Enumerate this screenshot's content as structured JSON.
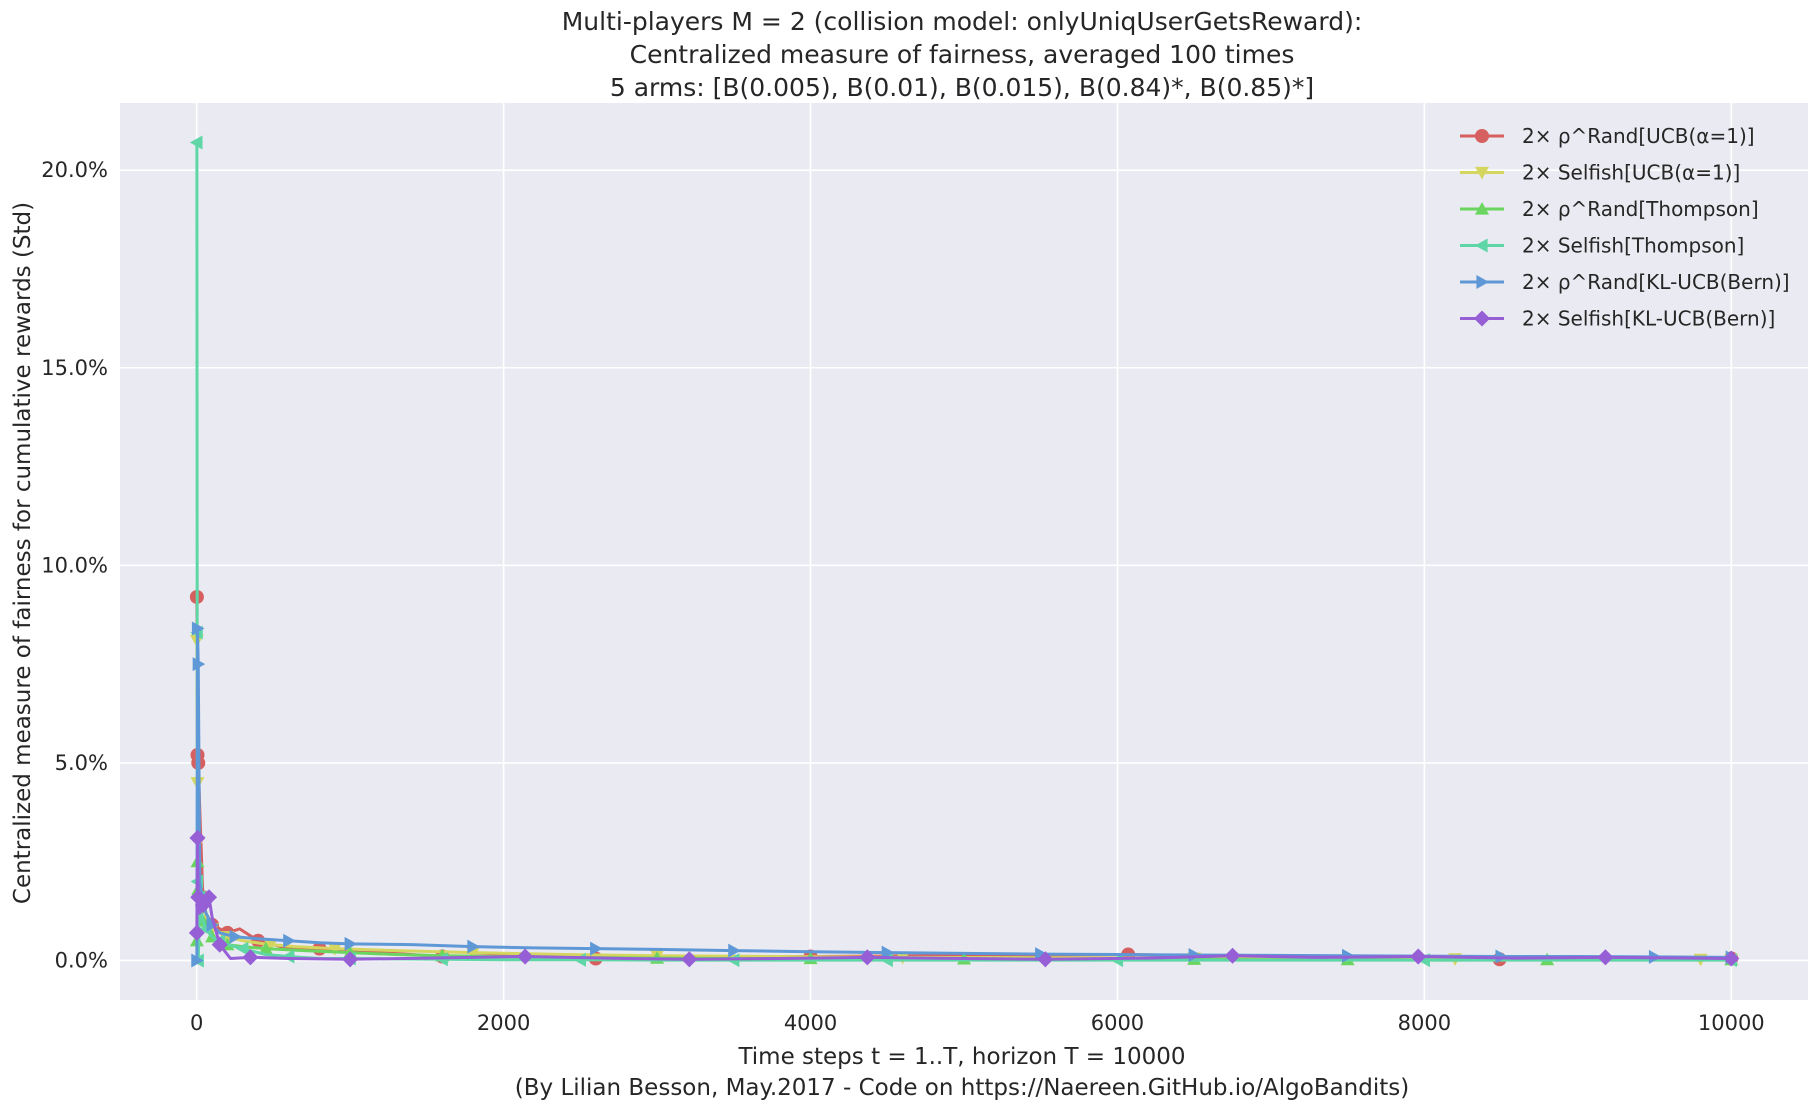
{
  "chart_data": {
    "type": "line",
    "title_lines": [
      "Multi-players M = 2 (collision model: onlyUniqUserGetsReward):",
      "Centralized measure of fairness, averaged 100 times",
      "5 arms: [B(0.005), B(0.01), B(0.015), B(0.84)*, B(0.85)*]"
    ],
    "xlabel": "Time steps t = 1..T, horizon T = 10000",
    "caption": "(By Lilian Besson, May.2017 - Code on https://Naereen.GitHub.io/AlgoBandits)",
    "ylabel": "Centralized measure of fairness for cumulative rewards (Std)",
    "xlim": [
      -500,
      10500
    ],
    "ylim": [
      -1.0,
      21.7
    ],
    "x_ticks": [
      0,
      2000,
      4000,
      6000,
      8000,
      10000
    ],
    "x_tick_labels": [
      "0",
      "2000",
      "4000",
      "6000",
      "8000",
      "10000"
    ],
    "y_ticks": [
      0,
      5,
      10,
      15,
      20
    ],
    "y_tick_labels": [
      "0.0%",
      "5.0%",
      "10.0%",
      "15.0%",
      "20.0%"
    ],
    "grid": true,
    "legend_position": "top-right",
    "background_color": "#eaeaf2",
    "series": [
      {
        "name": "2× ρ^Rand[UCB(α=1)]",
        "color": "#d65f5f",
        "marker": "circle",
        "x": [
          1,
          5,
          10,
          20,
          40,
          60,
          100,
          150,
          200,
          280,
          400,
          600,
          800,
          1200,
          1600,
          2000,
          2600,
          3200,
          4000,
          4860,
          6070,
          7280,
          8490,
          9700,
          10000
        ],
        "y": [
          9.2,
          5.2,
          5.0,
          3.8,
          1.6,
          1.2,
          0.9,
          0.8,
          0.7,
          0.8,
          0.5,
          0.3,
          0.3,
          0.2,
          0.1,
          0.12,
          0.05,
          0.1,
          0.1,
          0.12,
          0.15,
          0.08,
          0.03,
          0.08,
          0.05
        ]
      },
      {
        "name": "2× Selfish[UCB(α=1)]",
        "color": "#d5d65f",
        "marker": "triangle-down",
        "x": [
          1,
          5,
          10,
          20,
          40,
          60,
          100,
          150,
          200,
          300,
          480,
          640,
          900,
          1300,
          1800,
          2400,
          3000,
          3800,
          4600,
          5500,
          6500,
          7400,
          8200,
          9000,
          9800,
          10000
        ],
        "y": [
          8.1,
          4.5,
          3.0,
          2.0,
          1.5,
          1.1,
          0.8,
          0.7,
          0.6,
          0.5,
          0.4,
          0.35,
          0.3,
          0.25,
          0.2,
          0.15,
          0.12,
          0.1,
          0.08,
          0.07,
          0.06,
          0.05,
          0.04,
          0.04,
          0.03,
          0.03
        ]
      },
      {
        "name": "2× ρ^Rand[Thompson]",
        "color": "#6ad65f",
        "marker": "triangle-up",
        "x": [
          1,
          5,
          10,
          20,
          40,
          60,
          100,
          150,
          200,
          300,
          450,
          700,
          1000,
          1300,
          1600,
          2300,
          3000,
          3460,
          4000,
          4610,
          5000,
          5760,
          6500,
          6910,
          7500,
          8140,
          8800,
          9370,
          10000
        ],
        "y": [
          0.5,
          2.5,
          1.8,
          1.2,
          1.0,
          0.8,
          0.6,
          0.5,
          0.4,
          0.35,
          0.3,
          0.25,
          0.2,
          0.15,
          0.12,
          0.08,
          0.06,
          0.05,
          0.05,
          0.04,
          0.04,
          0.03,
          0.03,
          0.02,
          0.02,
          0.01,
          0.02,
          0.02,
          0.02
        ]
      },
      {
        "name": "2× Selfish[Thompson]",
        "color": "#5fd6a6",
        "marker": "triangle-left",
        "x": [
          1,
          3,
          5,
          10,
          20,
          40,
          60,
          100,
          150,
          200,
          300,
          450,
          600,
          800,
          1000,
          1300,
          1600,
          2000,
          2500,
          3000,
          3500,
          4000,
          4500,
          5000,
          6000,
          7000,
          8000,
          9000,
          10000
        ],
        "y": [
          20.7,
          8.3,
          2.0,
          0.0,
          1.6,
          1.0,
          0.8,
          0.6,
          0.5,
          0.4,
          0.3,
          0.15,
          0.1,
          0.05,
          0.05,
          0.04,
          0.03,
          0.02,
          0.02,
          0.01,
          0.01,
          0.01,
          0.01,
          0.01,
          0.01,
          0.01,
          0.01,
          0.01,
          0.01
        ]
      },
      {
        "name": "2× ρ^Rand[KL-UCB(Bern)]",
        "color": "#5f98d6",
        "marker": "triangle-right",
        "x": [
          1,
          5,
          10,
          20,
          40,
          60,
          100,
          150,
          250,
          400,
          600,
          800,
          1000,
          1400,
          1800,
          2200,
          2600,
          3000,
          3500,
          4000,
          4500,
          5000,
          5500,
          6000,
          6500,
          7000,
          7500,
          8000,
          8500,
          9000,
          9500,
          10000
        ],
        "y": [
          0.0,
          8.4,
          7.5,
          2.0,
          1.5,
          1.2,
          0.9,
          0.7,
          0.6,
          0.55,
          0.5,
          0.45,
          0.42,
          0.4,
          0.35,
          0.32,
          0.3,
          0.28,
          0.25,
          0.22,
          0.2,
          0.18,
          0.16,
          0.15,
          0.14,
          0.13,
          0.12,
          0.11,
          0.1,
          0.1,
          0.09,
          0.08
        ]
      },
      {
        "name": "2× Selfish[KL-UCB(Bern)]",
        "color": "#965fd6",
        "marker": "diamond",
        "x": [
          1,
          5,
          10,
          20,
          40,
          60,
          80,
          100,
          150,
          220,
          350,
          600,
          1000,
          1500,
          2140,
          2800,
          3210,
          3800,
          4370,
          5000,
          5530,
          6200,
          6750,
          7300,
          7960,
          8600,
          9180,
          10000
        ],
        "y": [
          0.7,
          3.1,
          1.6,
          1.2,
          1.4,
          1.5,
          1.6,
          1.1,
          0.4,
          0.05,
          0.08,
          0.05,
          0.03,
          0.06,
          0.1,
          0.05,
          0.03,
          0.05,
          0.08,
          0.05,
          0.03,
          0.06,
          0.12,
          0.08,
          0.1,
          0.06,
          0.08,
          0.05
        ]
      }
    ]
  }
}
